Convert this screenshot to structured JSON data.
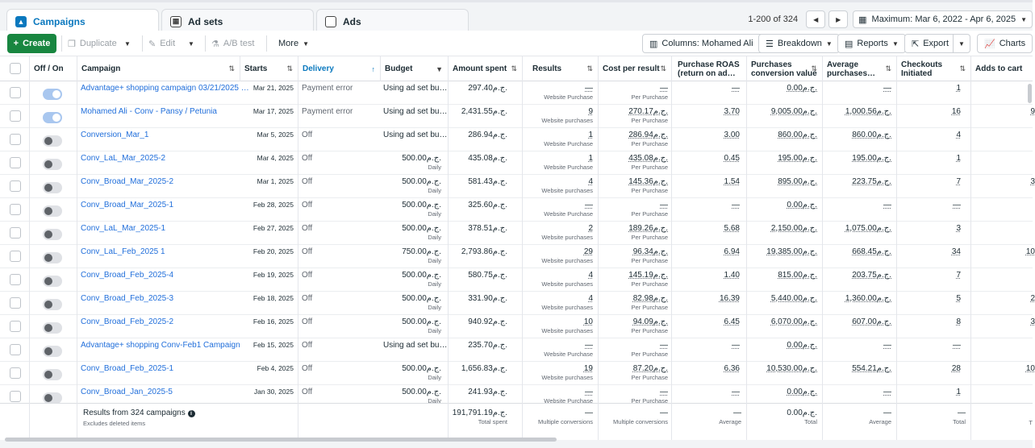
{
  "tabs": [
    {
      "label": "Campaigns",
      "icon": "campaigns-icon",
      "active": true
    },
    {
      "label": "Ad sets",
      "icon": "adsets-icon",
      "active": false
    },
    {
      "label": "Ads",
      "icon": "ads-icon",
      "active": false
    }
  ],
  "pager": {
    "range": "1-200 of 324",
    "date_range": "Maximum: Mar 6, 2022 - Apr 6, 2025"
  },
  "toolbar": {
    "create": "Create",
    "duplicate": "Duplicate",
    "edit": "Edit",
    "ab_test": "A/B test",
    "more": "More",
    "columns": "Columns: Mohamed Ali",
    "breakdown": "Breakdown",
    "reports": "Reports",
    "export": "Export",
    "charts": "Charts"
  },
  "columns": {
    "off_on": "Off / On",
    "campaign": "Campaign",
    "starts": "Starts",
    "delivery": "Delivery",
    "budget": "Budget",
    "amount_spent": "Amount spent",
    "results": "Results",
    "cost_per_result": "Cost per result",
    "purchase_roas_1": "Purchase ROAS",
    "purchase_roas_2": "(return on ad…",
    "conv_value_1": "Purchases",
    "conv_value_2": "conversion value",
    "avg_purch_1": "Average",
    "avg_purch_2": "purchases…",
    "checkouts_1": "Checkouts",
    "checkouts_2": "Initiated",
    "adds_to_cart": "Adds to cart"
  },
  "rows": [
    {
      "state": "on",
      "name": "Advantage+ shopping campaign 03/21/2025 …",
      "starts": "Mar 21, 2025",
      "delivery": "Payment error",
      "budget": "Using ad set bu…",
      "budget_sub": "",
      "spent": "297.40ج.م.",
      "results": "—",
      "results_sub": "Website Purchase",
      "cpr": "—",
      "cpr_sub": "Per Purchase",
      "roas": "—",
      "conv": "0.00ج.م.",
      "avg": "—",
      "checkouts": "1",
      "atc": ""
    },
    {
      "state": "on",
      "name": "Mohamed Ali - Conv - Pansy / Petunia",
      "starts": "Mar 17, 2025",
      "delivery": "Payment error",
      "budget": "Using ad set bu…",
      "budget_sub": "",
      "spent": "2,431.55ج.م.",
      "results": "9",
      "results_sub": "Website purchases",
      "cpr": "270.17ج.م.",
      "cpr_sub": "Per Purchase",
      "roas": "3.70",
      "conv": "9,005.00ج.م.",
      "avg": "1,000.56ج.م.",
      "checkouts": "16",
      "atc": "9"
    },
    {
      "state": "off",
      "name": "Conversion_Mar_1",
      "starts": "Mar 5, 2025",
      "delivery": "Off",
      "budget": "Using ad set bu…",
      "budget_sub": "",
      "spent": "286.94ج.م.",
      "results": "1",
      "results_sub": "Website Purchase",
      "cpr": "286.94ج.م.",
      "cpr_sub": "Per Purchase",
      "roas": "3.00",
      "conv": "860.00ج.م.",
      "avg": "860.00ج.م.",
      "checkouts": "4",
      "atc": ""
    },
    {
      "state": "off",
      "name": "Conv_LaL_Mar_2025-2",
      "starts": "Mar 4, 2025",
      "delivery": "Off",
      "budget": "500.00ج.م.",
      "budget_sub": "Daily",
      "spent": "435.08ج.م.",
      "results": "1",
      "results_sub": "Website Purchase",
      "cpr": "435.08ج.م.",
      "cpr_sub": "Per Purchase",
      "roas": "0.45",
      "conv": "195.00ج.م.",
      "avg": "195.00ج.م.",
      "checkouts": "1",
      "atc": ""
    },
    {
      "state": "off",
      "name": "Conv_Broad_Mar_2025-2",
      "starts": "Mar 1, 2025",
      "delivery": "Off",
      "budget": "500.00ج.م.",
      "budget_sub": "Daily",
      "spent": "581.43ج.م.",
      "results": "4",
      "results_sub": "Website purchases",
      "cpr": "145.36ج.م.",
      "cpr_sub": "Per Purchase",
      "roas": "1.54",
      "conv": "895.00ج.م.",
      "avg": "223.75ج.م.",
      "checkouts": "7",
      "atc": "3"
    },
    {
      "state": "off",
      "name": "Conv_Broad_Mar_2025-1",
      "starts": "Feb 28, 2025",
      "delivery": "Off",
      "budget": "500.00ج.م.",
      "budget_sub": "Daily",
      "spent": "325.60ج.م.",
      "results": "—",
      "results_sub": "Website Purchase",
      "cpr": "—",
      "cpr_sub": "Per Purchase",
      "roas": "—",
      "conv": "0.00ج.م.",
      "avg": "—",
      "checkouts": "—",
      "atc": ""
    },
    {
      "state": "off",
      "name": "Conv_LaL_Mar_2025-1",
      "starts": "Feb 27, 2025",
      "delivery": "Off",
      "budget": "500.00ج.م.",
      "budget_sub": "Daily",
      "spent": "378.51ج.م.",
      "results": "2",
      "results_sub": "Website purchases",
      "cpr": "189.26ج.م.",
      "cpr_sub": "Per Purchase",
      "roas": "5.68",
      "conv": "2,150.00ج.م.",
      "avg": "1,075.00ج.م.",
      "checkouts": "3",
      "atc": ""
    },
    {
      "state": "off",
      "name": "Conv_LaL_Feb_2025 1",
      "starts": "Feb 20, 2025",
      "delivery": "Off",
      "budget": "750.00ج.م.",
      "budget_sub": "Daily",
      "spent": "2,793.86ج.م.",
      "results": "29",
      "results_sub": "Website purchases",
      "cpr": "96.34ج.م.",
      "cpr_sub": "Per Purchase",
      "roas": "6.94",
      "conv": "19,385.00ج.م.",
      "avg": "668.45ج.م.",
      "checkouts": "34",
      "atc": "10"
    },
    {
      "state": "off",
      "name": "Conv_Broad_Feb_2025-4",
      "starts": "Feb 19, 2025",
      "delivery": "Off",
      "budget": "500.00ج.م.",
      "budget_sub": "Daily",
      "spent": "580.75ج.م.",
      "results": "4",
      "results_sub": "Website purchases",
      "cpr": "145.19ج.م.",
      "cpr_sub": "Per Purchase",
      "roas": "1.40",
      "conv": "815.00ج.م.",
      "avg": "203.75ج.م.",
      "checkouts": "7",
      "atc": ""
    },
    {
      "state": "off",
      "name": "Conv_Broad_Feb_2025-3",
      "starts": "Feb 18, 2025",
      "delivery": "Off",
      "budget": "500.00ج.م.",
      "budget_sub": "Daily",
      "spent": "331.90ج.م.",
      "results": "4",
      "results_sub": "Website purchases",
      "cpr": "82.98ج.م.",
      "cpr_sub": "Per Purchase",
      "roas": "16.39",
      "conv": "5,440.00ج.م.",
      "avg": "1,360.00ج.م.",
      "checkouts": "5",
      "atc": "2"
    },
    {
      "state": "off",
      "name": "Conv_Broad_Feb_2025-2",
      "starts": "Feb 16, 2025",
      "delivery": "Off",
      "budget": "500.00ج.م.",
      "budget_sub": "Daily",
      "spent": "940.92ج.م.",
      "results": "10",
      "results_sub": "Website purchases",
      "cpr": "94.09ج.م.",
      "cpr_sub": "Per Purchase",
      "roas": "6.45",
      "conv": "6,070.00ج.م.",
      "avg": "607.00ج.م.",
      "checkouts": "8",
      "atc": "3"
    },
    {
      "state": "off",
      "name": "Advantage+ shopping Conv-Feb1 Campaign",
      "starts": "Feb 15, 2025",
      "delivery": "Off",
      "budget": "Using ad set bu…",
      "budget_sub": "",
      "spent": "235.70ج.م.",
      "results": "—",
      "results_sub": "Website Purchase",
      "cpr": "—",
      "cpr_sub": "Per Purchase",
      "roas": "—",
      "conv": "0.00ج.م.",
      "avg": "—",
      "checkouts": "—",
      "atc": ""
    },
    {
      "state": "off",
      "name": "Conv_Broad_Feb_2025-1",
      "starts": "Feb 4, 2025",
      "delivery": "Off",
      "budget": "500.00ج.م.",
      "budget_sub": "Daily",
      "spent": "1,656.83ج.م.",
      "results": "19",
      "results_sub": "Website purchases",
      "cpr": "87.20ج.م.",
      "cpr_sub": "Per Purchase",
      "roas": "6.36",
      "conv": "10,530.00ج.م.",
      "avg": "554.21ج.م.",
      "checkouts": "28",
      "atc": "10"
    },
    {
      "state": "off",
      "name": "Conv_Broad_Jan_2025-5",
      "starts": "Jan 30, 2025",
      "delivery": "Off",
      "budget": "500.00ج.م.",
      "budget_sub": "Daily",
      "spent": "241.93ج.م.",
      "results": "—",
      "results_sub": "Website Purchase",
      "cpr": "—",
      "cpr_sub": "Per Purchase",
      "roas": "—",
      "conv": "0.00ج.م.",
      "avg": "—",
      "checkouts": "1",
      "atc": ""
    }
  ],
  "footer": {
    "results_from": "Results from 324 campaigns",
    "excludes": "Excludes deleted items",
    "spent": "191,791.19ج.م.",
    "spent_sub": "Total spent",
    "results": "—",
    "results_sub": "Multiple conversions",
    "cpr": "—",
    "cpr_sub": "Multiple conversions",
    "roas": "—",
    "roas_sub": "Average",
    "conv": "0.00ج.م.",
    "conv_sub": "Total",
    "avg": "—",
    "avg_sub": "Average",
    "checkouts": "—",
    "checkouts_sub": "Total",
    "atc_sub": "T"
  },
  "colors": {
    "accent": "#0a78be",
    "create": "#188640",
    "link": "#216fdb"
  }
}
